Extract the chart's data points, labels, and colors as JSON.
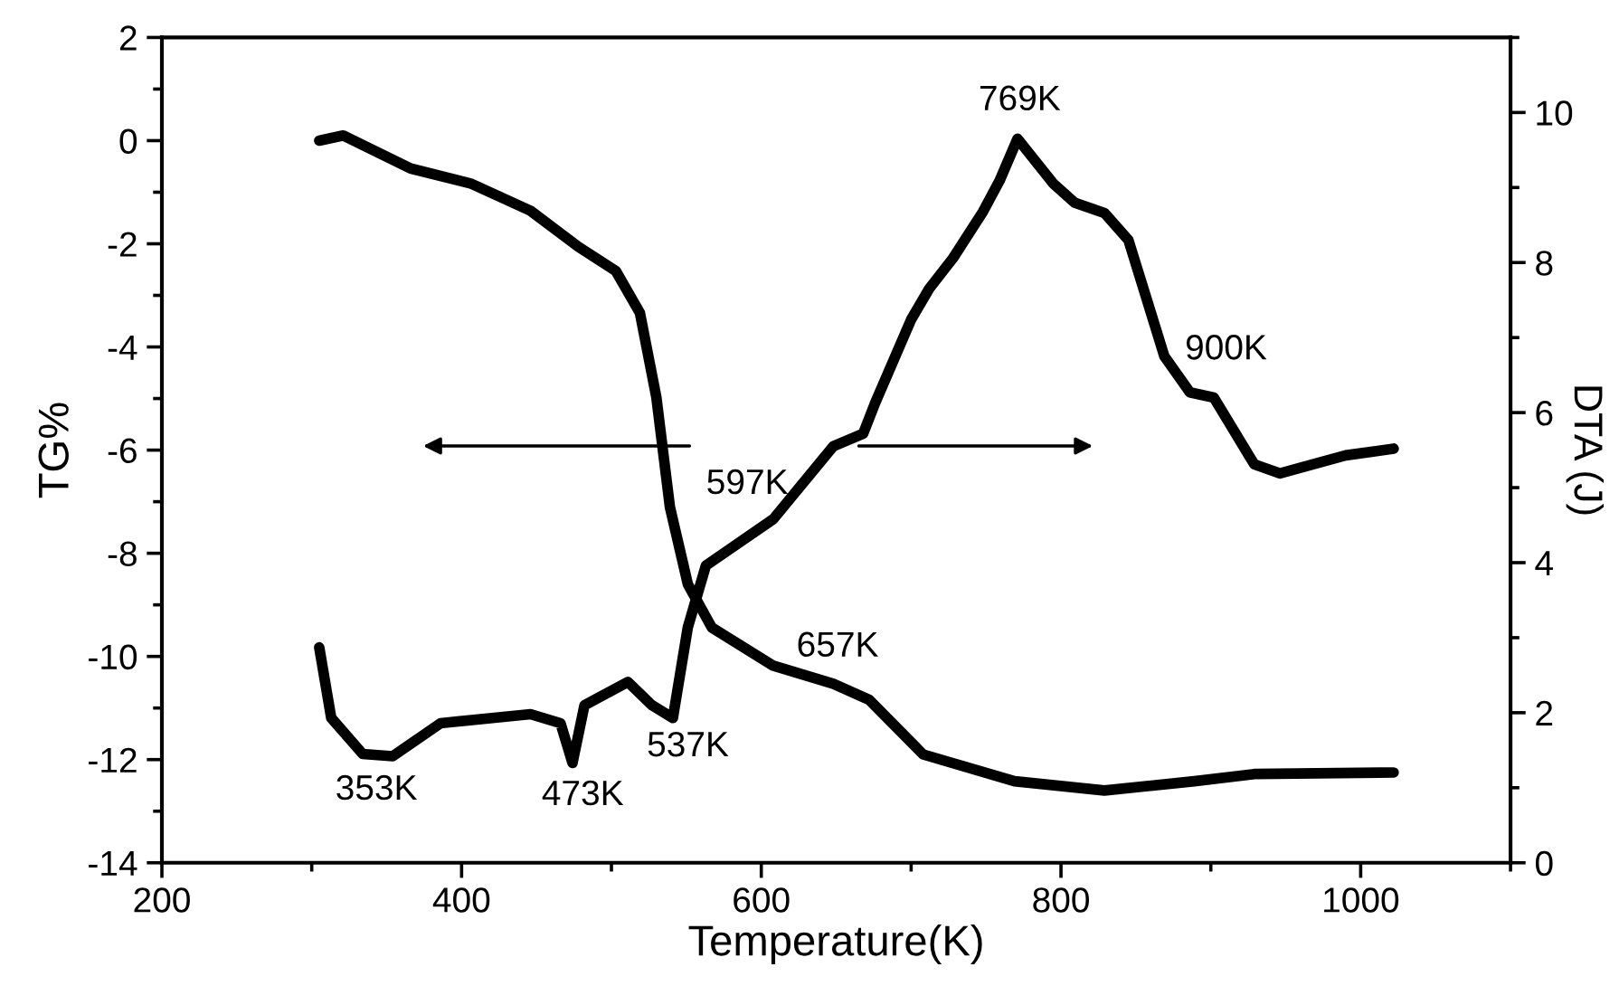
{
  "chart_data": {
    "type": "line",
    "xlabel": "Temperature(K)",
    "ylabel": "TG%",
    "y2label": "DTA (J)",
    "xlim": [
      200,
      1100
    ],
    "xticks": [
      200,
      400,
      600,
      800,
      1000
    ],
    "ylim": [
      -14,
      2
    ],
    "yticks": [
      -14,
      -12,
      -10,
      -8,
      -6,
      -4,
      -2,
      0,
      2
    ],
    "y2lim": [
      0,
      11
    ],
    "y2ticks": [
      0,
      2,
      4,
      6,
      8,
      10
    ],
    "grid": false,
    "marker": "none",
    "line_style": "solid",
    "series": [
      {
        "color": "#000000",
        "x": [
          305,
          321,
          366,
          406,
          446,
          478,
          503,
          519,
          530,
          539,
          551,
          567,
          608,
          648,
          672,
          708,
          769,
          829,
          889,
          929,
          1022
        ],
        "values": [
          0,
          0.1,
          -0.54,
          -0.83,
          -1.36,
          -2.06,
          -2.53,
          -3.34,
          -4.98,
          -7.1,
          -8.6,
          -9.44,
          -10.18,
          -10.53,
          -10.84,
          -11.9,
          -12.42,
          -12.6,
          -12.42,
          -12.28,
          -12.25
        ]
      },
      {
        "color": "#000000",
        "axis": "y2",
        "x": [
          305,
          313,
          334,
          354,
          386,
          446,
          466,
          474,
          482,
          511,
          527,
          541,
          551,
          563,
          608,
          648,
          668,
          676,
          700,
          712,
          728,
          748,
          759,
          771,
          795,
          809,
          829,
          845,
          869,
          886,
          902,
          929,
          946,
          990,
          1022
        ],
        "values": [
          2.87,
          1.93,
          1.45,
          1.42,
          1.86,
          1.98,
          1.86,
          1.33,
          2.1,
          2.41,
          2.1,
          1.93,
          3.14,
          3.96,
          4.58,
          5.55,
          5.72,
          6.13,
          7.24,
          7.65,
          8.06,
          8.68,
          9.09,
          9.65,
          9.05,
          8.8,
          8.66,
          8.3,
          6.75,
          6.27,
          6.2,
          5.31,
          5.19,
          5.43,
          5.52
        ]
      }
    ],
    "annotations": [
      "353K",
      "473K",
      "537K",
      "597K",
      "657K",
      "769K",
      "900K"
    ]
  }
}
